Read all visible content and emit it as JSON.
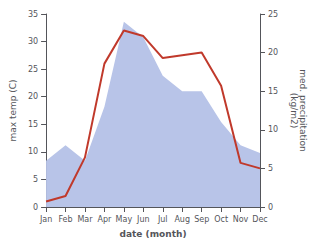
{
  "chart_data": {
    "type": "line",
    "xlabel": "date (month)",
    "ylabel": "max temp (C)",
    "y2label": "med. precipitation\n(kg/m2)",
    "categories": [
      "Jan",
      "Feb",
      "Mar",
      "Apr",
      "May",
      "Jun",
      "Jul",
      "Aug",
      "Sep",
      "Oct",
      "Nov",
      "Dec"
    ],
    "series": [
      {
        "type": "area",
        "axis": "y2",
        "color": "#b8c4e8",
        "values": [
          6,
          8,
          6,
          13,
          24,
          22,
          17,
          15,
          15,
          11,
          8,
          7
        ]
      },
      {
        "type": "line",
        "color": "#c0392b",
        "values": [
          1,
          2,
          9,
          26,
          32,
          31,
          27,
          27.5,
          28,
          22,
          8,
          7
        ]
      }
    ],
    "ylim": [
      0,
      35
    ],
    "yticks": [
      0,
      5,
      10,
      15,
      20,
      25,
      30,
      35
    ],
    "y2lim": [
      0,
      25
    ],
    "y2ticks": [
      0,
      5,
      10,
      15,
      20,
      25
    ],
    "grid": false
  }
}
